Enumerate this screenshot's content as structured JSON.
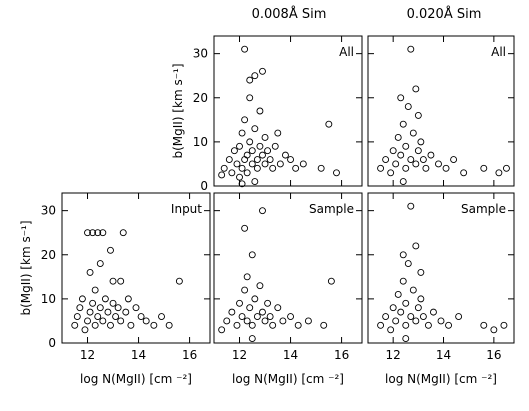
{
  "column_titles": [
    "0.008Å Sim",
    "0.020Å Sim"
  ],
  "chart_data": [
    {
      "type": "scatter",
      "panel": "top-middle",
      "label": "All",
      "ylabel": "b(MgII) [km s⁻¹]",
      "xlabel": "",
      "xlim": [
        11,
        16.8
      ],
      "ylim": [
        0,
        34
      ],
      "xticks": [
        12,
        14,
        16
      ],
      "yticks": [
        0,
        10,
        20,
        30
      ],
      "points": [
        [
          11.3,
          2.5
        ],
        [
          11.4,
          4
        ],
        [
          11.6,
          6
        ],
        [
          11.7,
          3
        ],
        [
          11.8,
          8
        ],
        [
          11.9,
          5
        ],
        [
          12.0,
          2
        ],
        [
          12.0,
          9
        ],
        [
          12.1,
          12
        ],
        [
          12.1,
          4
        ],
        [
          12.2,
          6
        ],
        [
          12.2,
          15
        ],
        [
          12.3,
          7
        ],
        [
          12.3,
          3
        ],
        [
          12.4,
          10
        ],
        [
          12.4,
          20
        ],
        [
          12.5,
          5
        ],
        [
          12.5,
          8
        ],
        [
          12.6,
          13
        ],
        [
          12.6,
          25
        ],
        [
          12.7,
          6
        ],
        [
          12.7,
          4
        ],
        [
          12.8,
          9
        ],
        [
          12.8,
          17
        ],
        [
          12.9,
          7
        ],
        [
          13.0,
          5
        ],
        [
          13.0,
          11
        ],
        [
          13.1,
          8
        ],
        [
          13.2,
          6
        ],
        [
          13.3,
          4
        ],
        [
          13.4,
          9
        ],
        [
          13.5,
          12
        ],
        [
          13.6,
          5
        ],
        [
          13.8,
          7
        ],
        [
          14.0,
          6
        ],
        [
          14.2,
          4
        ],
        [
          14.5,
          5
        ],
        [
          15.2,
          4
        ],
        [
          15.5,
          14
        ],
        [
          15.8,
          3
        ],
        [
          12.2,
          31
        ],
        [
          12.4,
          24
        ],
        [
          12.9,
          26
        ],
        [
          12.6,
          1
        ],
        [
          12.1,
          0.5
        ]
      ]
    },
    {
      "type": "scatter",
      "panel": "top-right",
      "label": "All",
      "xlabel": "",
      "ylabel": "",
      "xlim": [
        11,
        16.8
      ],
      "ylim": [
        0,
        34
      ],
      "xticks": [
        12,
        14,
        16
      ],
      "yticks": [
        0,
        10,
        20,
        30
      ],
      "points": [
        [
          11.5,
          4
        ],
        [
          11.7,
          6
        ],
        [
          11.9,
          3
        ],
        [
          12.0,
          8
        ],
        [
          12.1,
          5
        ],
        [
          12.2,
          11
        ],
        [
          12.3,
          7
        ],
        [
          12.4,
          14
        ],
        [
          12.5,
          9
        ],
        [
          12.5,
          4
        ],
        [
          12.6,
          18
        ],
        [
          12.7,
          6
        ],
        [
          12.8,
          12
        ],
        [
          12.9,
          5
        ],
        [
          13.0,
          8
        ],
        [
          13.1,
          10
        ],
        [
          13.2,
          6
        ],
        [
          13.3,
          4
        ],
        [
          13.5,
          7
        ],
        [
          13.8,
          5
        ],
        [
          14.1,
          4
        ],
        [
          14.4,
          6
        ],
        [
          14.8,
          3
        ],
        [
          15.6,
          4
        ],
        [
          16.2,
          3
        ],
        [
          16.5,
          4
        ],
        [
          12.7,
          31
        ],
        [
          12.9,
          22
        ],
        [
          12.3,
          20
        ],
        [
          13.0,
          16
        ],
        [
          12.4,
          1
        ]
      ]
    },
    {
      "type": "scatter",
      "panel": "bottom-left",
      "label": "Input",
      "ylabel": "b(MgII) [km s⁻¹]",
      "xlabel": "log N(MgII) [cm ⁻²]",
      "xlim": [
        11,
        16.8
      ],
      "ylim": [
        0,
        34
      ],
      "xticks": [
        12,
        14,
        16
      ],
      "yticks": [
        0,
        10,
        20,
        30
      ],
      "points": [
        [
          11.5,
          4
        ],
        [
          11.6,
          6
        ],
        [
          11.7,
          8
        ],
        [
          11.8,
          10
        ],
        [
          11.9,
          3
        ],
        [
          12.0,
          5
        ],
        [
          12.0,
          25
        ],
        [
          12.1,
          7
        ],
        [
          12.1,
          16
        ],
        [
          12.2,
          9
        ],
        [
          12.2,
          25
        ],
        [
          12.3,
          4
        ],
        [
          12.3,
          12
        ],
        [
          12.4,
          6
        ],
        [
          12.4,
          25
        ],
        [
          12.5,
          8
        ],
        [
          12.5,
          18
        ],
        [
          12.6,
          5
        ],
        [
          12.6,
          25
        ],
        [
          12.7,
          10
        ],
        [
          12.8,
          7
        ],
        [
          12.9,
          4
        ],
        [
          13.0,
          9
        ],
        [
          13.0,
          14
        ],
        [
          13.1,
          6
        ],
        [
          13.2,
          8
        ],
        [
          13.3,
          5
        ],
        [
          13.4,
          25
        ],
        [
          13.5,
          7
        ],
        [
          13.6,
          10
        ],
        [
          13.7,
          4
        ],
        [
          13.9,
          8
        ],
        [
          14.1,
          6
        ],
        [
          14.3,
          5
        ],
        [
          14.6,
          4
        ],
        [
          14.9,
          6
        ],
        [
          15.2,
          4
        ],
        [
          15.6,
          14
        ],
        [
          13.3,
          14
        ],
        [
          12.9,
          21
        ]
      ]
    },
    {
      "type": "scatter",
      "panel": "bottom-middle",
      "label": "Sample",
      "xlabel": "log N(MgII) [cm ⁻²]",
      "ylabel": "",
      "xlim": [
        11,
        16.8
      ],
      "ylim": [
        0,
        34
      ],
      "xticks": [
        12,
        14,
        16
      ],
      "yticks": [
        0,
        10,
        20,
        30
      ],
      "points": [
        [
          11.3,
          3
        ],
        [
          11.5,
          5
        ],
        [
          11.7,
          7
        ],
        [
          11.9,
          4
        ],
        [
          12.0,
          9
        ],
        [
          12.1,
          6
        ],
        [
          12.2,
          12
        ],
        [
          12.3,
          5
        ],
        [
          12.3,
          15
        ],
        [
          12.4,
          8
        ],
        [
          12.5,
          20
        ],
        [
          12.5,
          4
        ],
        [
          12.6,
          10
        ],
        [
          12.7,
          6
        ],
        [
          12.8,
          13
        ],
        [
          12.9,
          7
        ],
        [
          13.0,
          5
        ],
        [
          13.1,
          9
        ],
        [
          13.2,
          6
        ],
        [
          13.3,
          4
        ],
        [
          13.5,
          8
        ],
        [
          13.7,
          5
        ],
        [
          14.0,
          6
        ],
        [
          14.3,
          4
        ],
        [
          14.7,
          5
        ],
        [
          15.3,
          4
        ],
        [
          15.6,
          14
        ],
        [
          12.2,
          26
        ],
        [
          12.9,
          30
        ],
        [
          12.5,
          1
        ]
      ]
    },
    {
      "type": "scatter",
      "panel": "bottom-right",
      "label": "Sample",
      "xlabel": "log N(MgII) [cm ⁻²]",
      "ylabel": "",
      "xlim": [
        11,
        16.8
      ],
      "ylim": [
        0,
        34
      ],
      "xticks": [
        12,
        14,
        16
      ],
      "yticks": [
        0,
        10,
        20,
        30
      ],
      "points": [
        [
          11.5,
          4
        ],
        [
          11.7,
          6
        ],
        [
          11.9,
          3
        ],
        [
          12.0,
          8
        ],
        [
          12.1,
          5
        ],
        [
          12.2,
          11
        ],
        [
          12.3,
          7
        ],
        [
          12.4,
          14
        ],
        [
          12.5,
          9
        ],
        [
          12.5,
          4
        ],
        [
          12.6,
          18
        ],
        [
          12.7,
          6
        ],
        [
          12.8,
          12
        ],
        [
          12.9,
          5
        ],
        [
          13.0,
          8
        ],
        [
          13.1,
          10
        ],
        [
          13.2,
          6
        ],
        [
          13.4,
          4
        ],
        [
          13.6,
          7
        ],
        [
          13.9,
          5
        ],
        [
          14.2,
          4
        ],
        [
          14.6,
          6
        ],
        [
          15.6,
          4
        ],
        [
          16.0,
          3
        ],
        [
          16.4,
          4
        ],
        [
          12.7,
          31
        ],
        [
          12.9,
          22
        ],
        [
          12.4,
          20
        ],
        [
          13.1,
          16
        ],
        [
          12.5,
          1
        ]
      ]
    }
  ]
}
